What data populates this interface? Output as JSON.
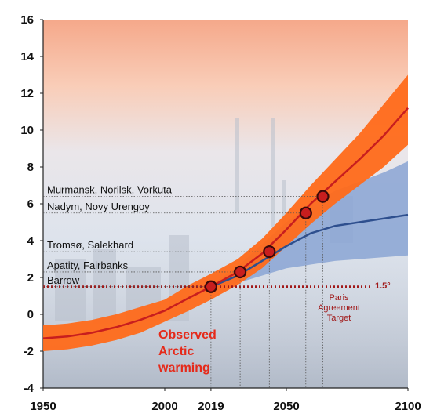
{
  "chart_data": {
    "type": "line",
    "title": "",
    "xlabel": "",
    "ylabel": "",
    "xlim": [
      1950,
      2100
    ],
    "ylim": [
      -4,
      16
    ],
    "x_ticks": [
      "1950",
      "2000",
      "2019",
      "2050",
      "2100"
    ],
    "y_ticks": [
      "-4",
      "-2",
      "0",
      "2",
      "4",
      "6",
      "8",
      "10",
      "12",
      "14",
      "16"
    ],
    "colors": {
      "high_band": "#ff6a1a",
      "high_line": "#c81e1e",
      "low_band": "#8aa4d4",
      "low_line": "#2e4f8e",
      "paris": "#a01818",
      "observed": "#e52a1a",
      "highlight_year": "#f07818"
    },
    "series": [
      {
        "x": [
          1950,
          1960,
          1970,
          1980,
          1990,
          2000,
          2010,
          2019,
          2030,
          2040,
          2050,
          2060,
          2070,
          2080,
          2090,
          2100
        ],
        "y": [
          -1.3,
          -1.2,
          -1.0,
          -0.7,
          -0.3,
          0.2,
          0.9,
          1.5,
          2.3,
          3.3,
          4.6,
          6.0,
          7.2,
          8.4,
          9.7,
          11.2
        ],
        "band_low": [
          -2.0,
          -1.9,
          -1.7,
          -1.4,
          -1.0,
          -0.4,
          0.2,
          0.8,
          1.6,
          2.5,
          3.7,
          4.9,
          6.0,
          7.0,
          8.0,
          9.2
        ],
        "band_high": [
          -0.6,
          -0.5,
          -0.3,
          0.0,
          0.4,
          0.8,
          1.6,
          2.2,
          3.0,
          4.1,
          5.5,
          7.0,
          8.4,
          9.8,
          11.4,
          13.0
        ]
      },
      {
        "x": [
          2019,
          2030,
          2040,
          2050,
          2060,
          2070,
          2080,
          2090,
          2100
        ],
        "y": [
          1.5,
          2.1,
          2.9,
          3.7,
          4.4,
          4.8,
          5.0,
          5.2,
          5.4
        ],
        "band_low": [
          1.4,
          1.7,
          2.1,
          2.5,
          2.7,
          2.9,
          3.0,
          3.1,
          3.2
        ],
        "band_high": [
          1.6,
          2.6,
          3.8,
          5.0,
          6.0,
          6.7,
          7.2,
          7.7,
          8.3
        ]
      }
    ],
    "markers": [
      {
        "label": "Barrow",
        "x": 2019,
        "y": 1.5
      },
      {
        "label": "Apatity, Fairbanks",
        "x": 2031,
        "y": 2.3
      },
      {
        "label": "Tromsø, Salekhard",
        "x": 2043,
        "y": 3.4
      },
      {
        "label": "Nadym, Novy Urengoy",
        "x": 2058,
        "y": 5.5
      },
      {
        "label": "Murmansk, Norilsk, Vorkuta",
        "x": 2065,
        "y": 6.4
      }
    ],
    "paris_target": {
      "y": 1.5,
      "value_label": "1.5°",
      "text_lines": [
        "Paris",
        "Agreement",
        "Target"
      ]
    },
    "observed_annotation": [
      "Observed",
      "Arctic",
      "warming"
    ]
  }
}
